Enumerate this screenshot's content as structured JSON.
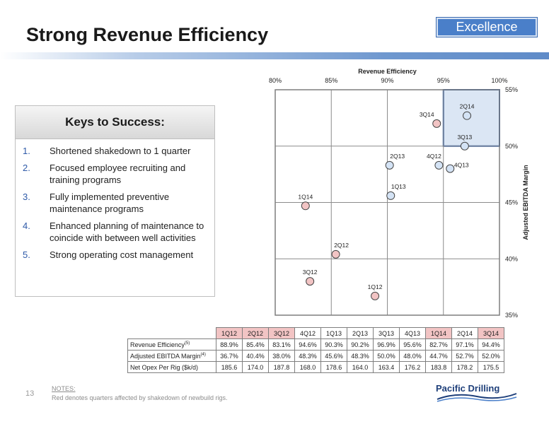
{
  "header": {
    "title": "Strong Revenue Efficiency",
    "badge": "Excellence"
  },
  "keys": {
    "heading": "Keys to Success:",
    "items": [
      {
        "num": "1.",
        "text": "Shortened shakedown to 1 quarter"
      },
      {
        "num": "2.",
        "text": "Focused employee recruiting and training programs"
      },
      {
        "num": "3.",
        "text": "Fully implemented preventive maintenance programs"
      },
      {
        "num": "4.",
        "text": "Enhanced planning of maintenance to coincide with between well activities"
      },
      {
        "num": "5.",
        "text": "Strong operating cost management"
      }
    ]
  },
  "chart_data": {
    "type": "scatter",
    "xlabel": "Revenue Efficiency",
    "ylabel": "Adjusted EBITDA Margin",
    "xlim": [
      80,
      100
    ],
    "ylim": [
      35,
      55
    ],
    "x_ticks": [
      "80%",
      "85%",
      "90%",
      "95%",
      "100%"
    ],
    "y_ticks": [
      "35%",
      "40%",
      "45%",
      "50%",
      "55%"
    ],
    "grid": true,
    "highlight_region": {
      "x": [
        95,
        100
      ],
      "y": [
        50,
        55
      ]
    },
    "colors": {
      "shakedown": "#f2c4c4",
      "normal": "#d4e3f5",
      "highlight": "#dbe6f4",
      "highlight_border": "#2e5aa8"
    },
    "points": [
      {
        "label": "1Q12",
        "x": 88.9,
        "y": 36.7,
        "shakedown": true
      },
      {
        "label": "2Q12",
        "x": 85.4,
        "y": 40.4,
        "shakedown": true
      },
      {
        "label": "3Q12",
        "x": 83.1,
        "y": 38.0,
        "shakedown": true
      },
      {
        "label": "4Q12",
        "x": 94.6,
        "y": 48.3,
        "shakedown": false
      },
      {
        "label": "1Q13",
        "x": 90.3,
        "y": 45.6,
        "shakedown": false
      },
      {
        "label": "2Q13",
        "x": 90.2,
        "y": 48.3,
        "shakedown": false
      },
      {
        "label": "3Q13",
        "x": 96.9,
        "y": 50.0,
        "shakedown": false
      },
      {
        "label": "4Q13",
        "x": 95.6,
        "y": 48.0,
        "shakedown": false
      },
      {
        "label": "1Q14",
        "x": 82.7,
        "y": 44.7,
        "shakedown": true
      },
      {
        "label": "2Q14",
        "x": 97.1,
        "y": 52.7,
        "shakedown": false
      },
      {
        "label": "3Q14",
        "x": 94.4,
        "y": 52.0,
        "shakedown": true
      }
    ]
  },
  "table": {
    "quarters": [
      {
        "label": "1Q12",
        "red": true
      },
      {
        "label": "2Q12",
        "red": true
      },
      {
        "label": "3Q12",
        "red": true
      },
      {
        "label": "4Q12",
        "red": false
      },
      {
        "label": "1Q13",
        "red": false
      },
      {
        "label": "2Q13",
        "red": false
      },
      {
        "label": "3Q13",
        "red": false
      },
      {
        "label": "4Q13",
        "red": false
      },
      {
        "label": "1Q14",
        "red": true
      },
      {
        "label": "2Q14",
        "red": false
      },
      {
        "label": "3Q14",
        "red": true
      }
    ],
    "rows": [
      {
        "label": "Revenue Efficiency",
        "sup": "(5)",
        "values": [
          "88.9%",
          "85.4%",
          "83.1%",
          "94.6%",
          "90.3%",
          "90.2%",
          "96.9%",
          "95.6%",
          "82.7%",
          "97.1%",
          "94.4%"
        ]
      },
      {
        "label": "Adjusted EBITDA Margin",
        "sup": "(4)",
        "values": [
          "36.7%",
          "40.4%",
          "38.0%",
          "48.3%",
          "45.6%",
          "48.3%",
          "50.0%",
          "48.0%",
          "44.7%",
          "52.7%",
          "52.0%"
        ]
      },
      {
        "label": "Net Opex Per Rig ($k/d)",
        "sup": "",
        "values": [
          "185.6",
          "174.0",
          "187.8",
          "168.0",
          "178.6",
          "164.0",
          "163.4",
          "176.2",
          "183.8",
          "178.2",
          "175.5"
        ]
      }
    ]
  },
  "footer": {
    "page_number": "13",
    "notes_heading": "NOTES:",
    "notes_text": "Red denotes quarters affected by shakedown of newbuild rigs.",
    "logo_text": "Pacific Drilling"
  }
}
